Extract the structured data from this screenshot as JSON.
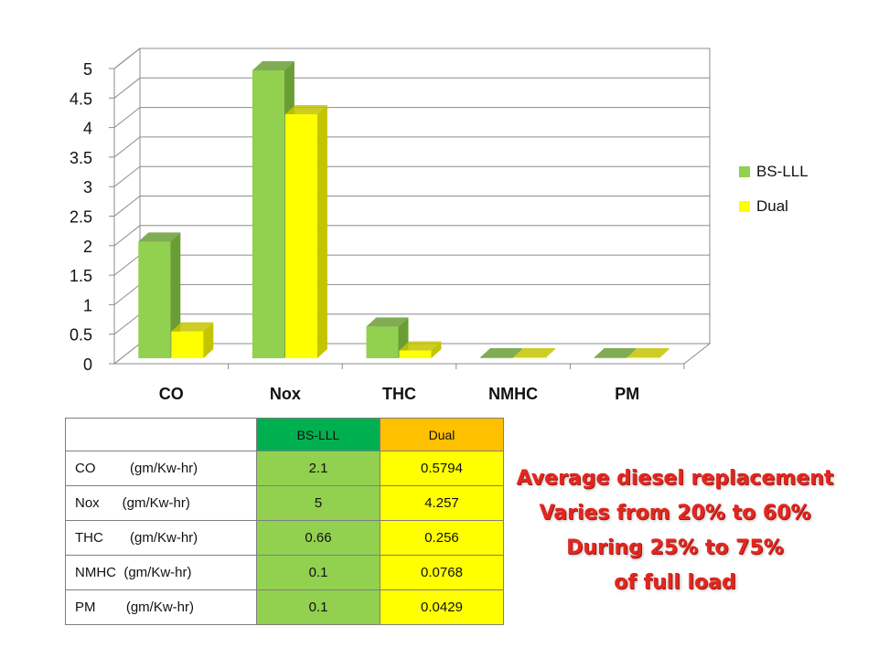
{
  "chart_data": {
    "type": "bar",
    "categories": [
      "CO",
      "Nox",
      "THC",
      "NMHC",
      "PM"
    ],
    "series": [
      {
        "name": "BS-LLL",
        "values": [
          2.1,
          5,
          0.66,
          0.1,
          0.1
        ],
        "color": "#92d050",
        "side_color": "#6a9e35"
      },
      {
        "name": "Dual",
        "values": [
          0.5794,
          4.257,
          0.256,
          0.0768,
          0.0429
        ],
        "color": "#ffff00",
        "side_color": "#c4c400"
      }
    ],
    "ylim": [
      0,
      5
    ],
    "yticks": [
      "0",
      "0.5",
      "1",
      "1.5",
      "2",
      "2.5",
      "3",
      "3.5",
      "4",
      "4.5",
      "5"
    ],
    "grid": true,
    "legend": "right",
    "style": "3d-clustered-column"
  },
  "table": {
    "header": [
      "",
      "BS-LLL",
      "Dual"
    ],
    "header_colors": [
      "#ffffff",
      "#00b050",
      "#ffc000"
    ],
    "value_colors": [
      "#92d050",
      "#ffff00"
    ],
    "rows": [
      {
        "label": "CO         (gm/Kw-hr)",
        "bs": "2.1",
        "dual": "0.5794"
      },
      {
        "label": "Nox      (gm/Kw-hr)",
        "bs": "5",
        "dual": "4.257"
      },
      {
        "label": "THC       (gm/Kw-hr)",
        "bs": "0.66",
        "dual": "0.256"
      },
      {
        "label": "NMHC  (gm/Kw-hr)",
        "bs": "0.1",
        "dual": "0.0768"
      },
      {
        "label": "PM        (gm/Kw-hr)",
        "bs": "0.1",
        "dual": "0.0429"
      }
    ]
  },
  "note": {
    "lines": [
      "Average diesel replacement",
      "Varies from 20% to 60%",
      "During 25% to 75%",
      "of full load"
    ],
    "color": "#e3261f"
  }
}
